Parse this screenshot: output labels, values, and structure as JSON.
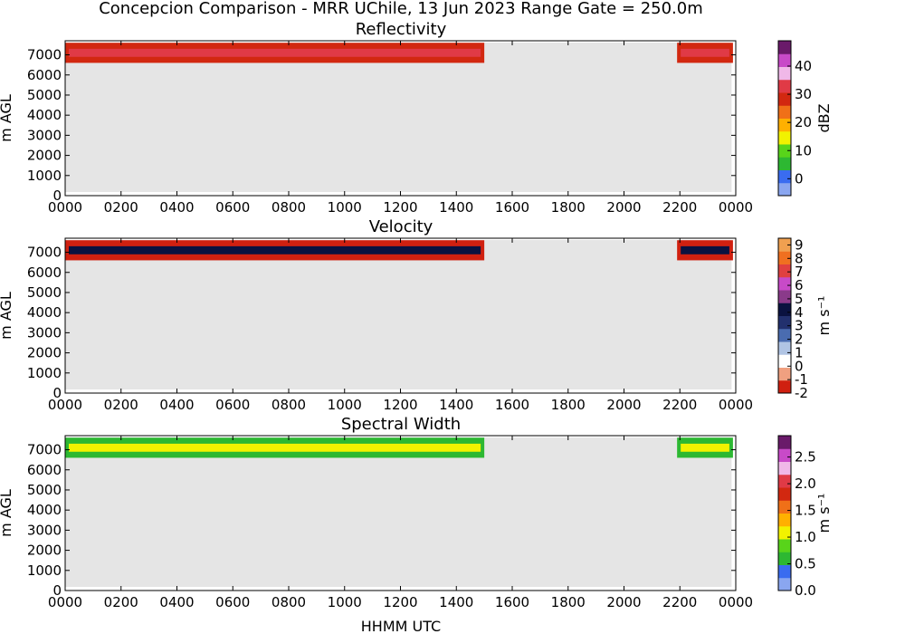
{
  "figure": {
    "suptitle": "Concepcion Comparison - MRR UChile, 13 Jun 2023 Range Gate = 250.0m",
    "xlabel": "HHMM UTC",
    "background_colour": "#e5e5e5"
  },
  "chart_data": [
    {
      "type": "heatmap",
      "title": "Reflectivity",
      "xlabel": "",
      "ylabel": "m AGL",
      "colorbar_label": "dBZ",
      "xlim": [
        0,
        24
      ],
      "ylim": [
        0,
        7700
      ],
      "x_ticks": [
        "0000",
        "0200",
        "0400",
        "0600",
        "0800",
        "1000",
        "1200",
        "1400",
        "1600",
        "1800",
        "2000",
        "2200",
        "0000"
      ],
      "y_ticks": [
        "0",
        "1000",
        "2000",
        "3000",
        "4000",
        "5000",
        "6000",
        "7000"
      ],
      "clim": [
        -6,
        49
      ],
      "colorbar_ticks": [
        "0",
        "10",
        "20",
        "30",
        "40"
      ],
      "colorbar_tick_values": [
        0,
        10,
        20,
        30,
        40
      ],
      "colormap": [
        "#8aa6f0",
        "#3a6cf0",
        "#2db832",
        "#58d41a",
        "#f2f200",
        "#ffb000",
        "#f07018",
        "#d22810",
        "#e03a46",
        "#f0b8e8",
        "#c84ac8",
        "#6a1a6a"
      ],
      "echo_layer": {
        "base_m": 6600,
        "top_m": 7600,
        "segments_utc_hours": [
          [
            0.0,
            15.0
          ],
          [
            21.9,
            23.9
          ]
        ],
        "typical_values_dbz": [
          30,
          35
        ]
      }
    },
    {
      "type": "heatmap",
      "title": "Velocity",
      "xlabel": "",
      "ylabel": "m AGL",
      "colorbar_label": "m s⁻¹",
      "xlim": [
        0,
        24
      ],
      "ylim": [
        0,
        7700
      ],
      "x_ticks": [
        "0000",
        "0200",
        "0400",
        "0600",
        "0800",
        "1000",
        "1200",
        "1400",
        "1600",
        "1800",
        "2000",
        "2200",
        "0000"
      ],
      "y_ticks": [
        "0",
        "1000",
        "2000",
        "3000",
        "4000",
        "5000",
        "6000",
        "7000"
      ],
      "clim": [
        -2,
        9.5
      ],
      "colorbar_ticks": [
        "-2",
        "-1",
        "0",
        "1",
        "2",
        "3",
        "4",
        "5",
        "6",
        "7",
        "8",
        "9"
      ],
      "colorbar_tick_values": [
        -2,
        -1,
        0,
        1,
        2,
        3,
        4,
        5,
        6,
        7,
        8,
        9
      ],
      "colormap": [
        "#d02010",
        "#f0a080",
        "#ffffff",
        "#b0c4e4",
        "#4a6cb0",
        "#22306e",
        "#0a1240",
        "#8a3a8a",
        "#c84ac8",
        "#e04040",
        "#f07020",
        "#f0a050"
      ],
      "echo_layer": {
        "base_m": 6600,
        "top_m": 7600,
        "segments_utc_hours": [
          [
            0.0,
            15.0
          ],
          [
            21.9,
            23.9
          ]
        ],
        "typical_values_ms": [
          -2,
          4
        ]
      }
    },
    {
      "type": "heatmap",
      "title": "Spectral Width",
      "xlabel": "HHMM UTC",
      "ylabel": "m AGL",
      "colorbar_label": "m s⁻¹",
      "xlim": [
        0,
        24
      ],
      "ylim": [
        0,
        7700
      ],
      "x_ticks": [
        "0000",
        "0200",
        "0400",
        "0600",
        "0800",
        "1000",
        "1200",
        "1400",
        "1600",
        "1800",
        "2000",
        "2200",
        "0000"
      ],
      "y_ticks": [
        "0",
        "1000",
        "2000",
        "3000",
        "4000",
        "5000",
        "6000",
        "7000"
      ],
      "clim": [
        0,
        2.9
      ],
      "colorbar_ticks": [
        "0.0",
        "0.5",
        "1.0",
        "1.5",
        "2.0",
        "2.5"
      ],
      "colorbar_tick_values": [
        0,
        0.5,
        1.0,
        1.5,
        2.0,
        2.5
      ],
      "colormap": [
        "#8aa6f0",
        "#3a6cf0",
        "#2db832",
        "#58d41a",
        "#f2f200",
        "#ffb000",
        "#f07018",
        "#d22810",
        "#e03a46",
        "#f0b8e8",
        "#c84ac8",
        "#6a1a6a"
      ],
      "echo_layer": {
        "base_m": 6600,
        "top_m": 7600,
        "segments_utc_hours": [
          [
            0.0,
            15.0
          ],
          [
            21.9,
            23.9
          ]
        ],
        "typical_values_ms": [
          0.5,
          1.0
        ]
      }
    }
  ]
}
